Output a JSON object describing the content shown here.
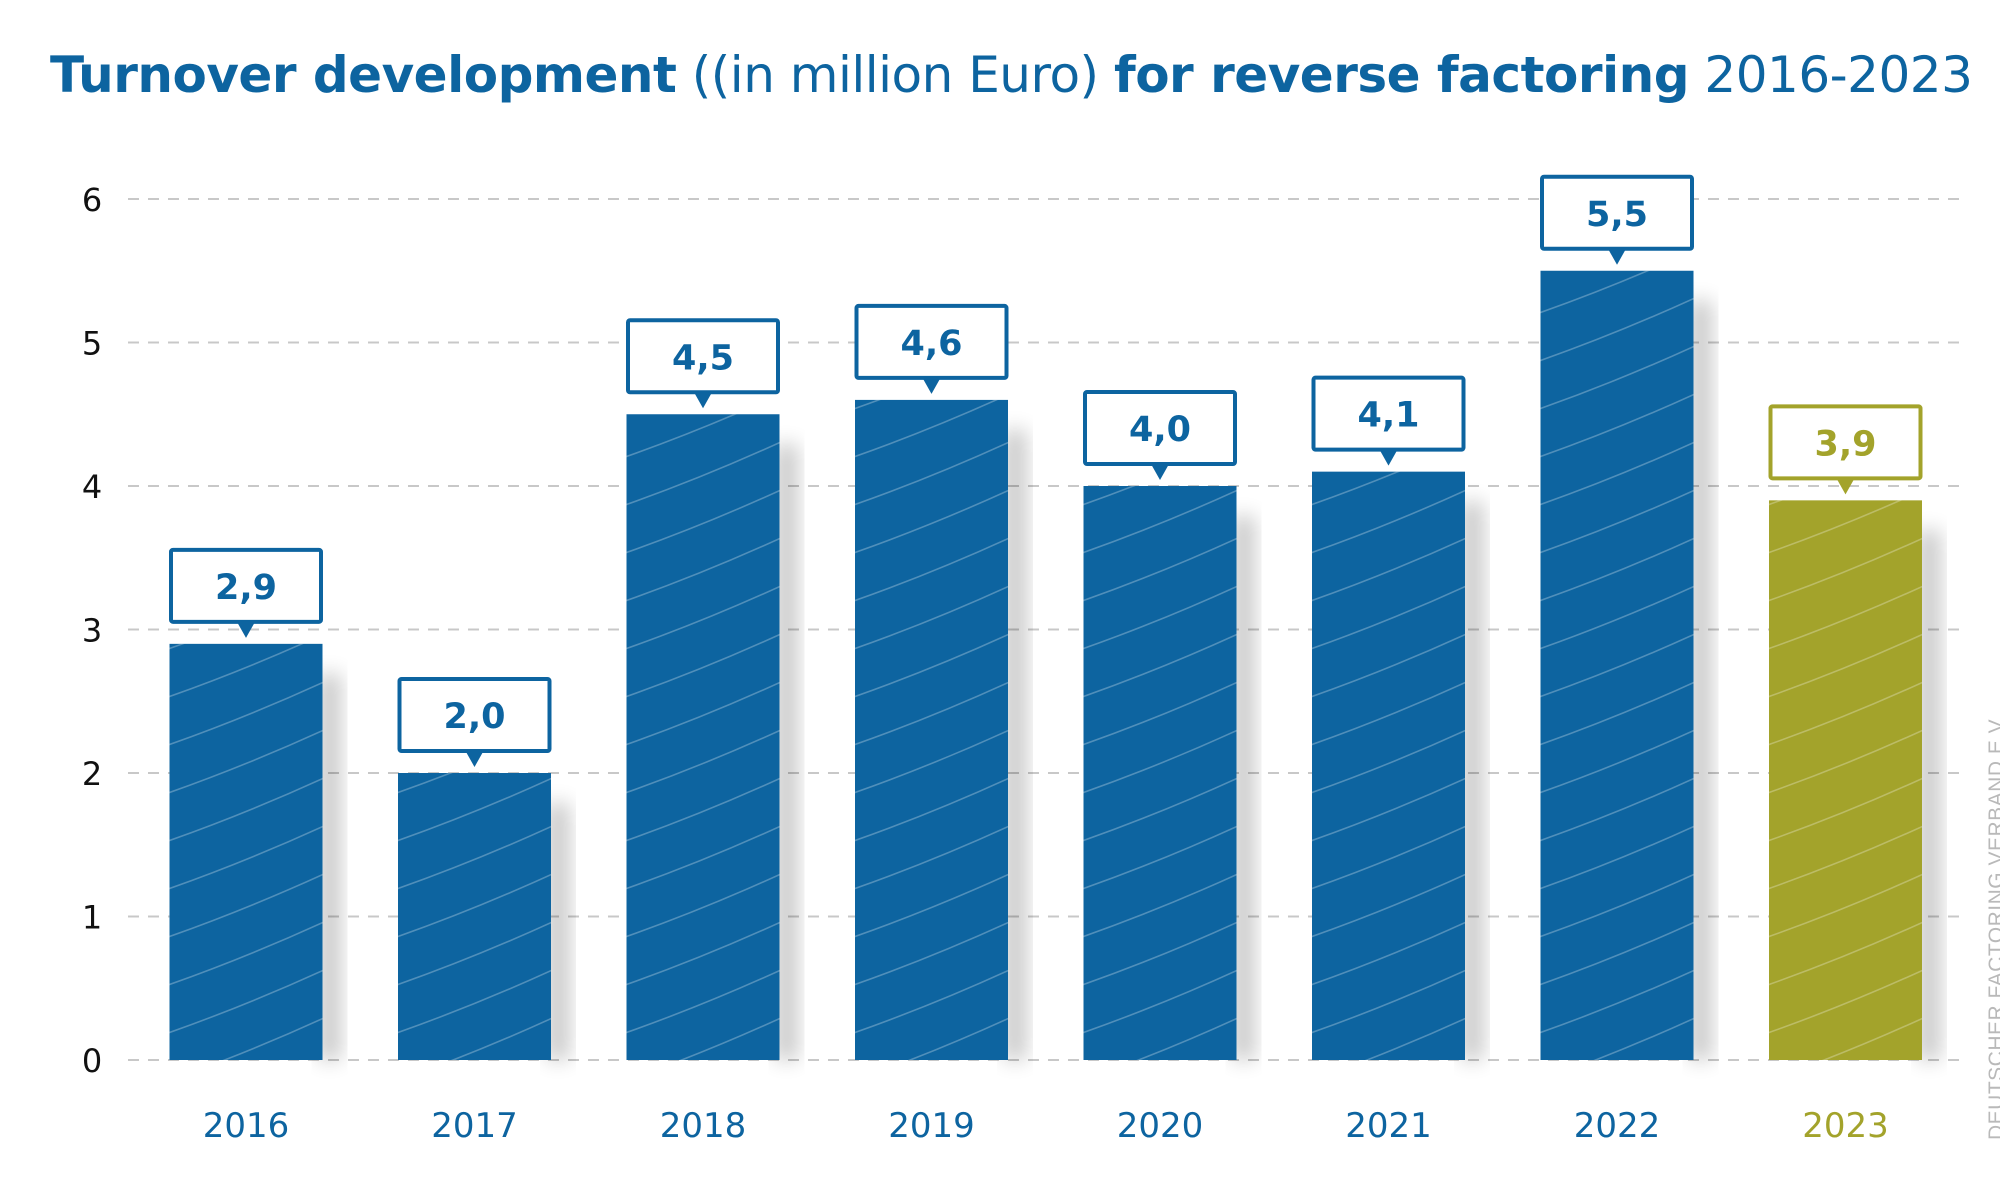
{
  "chart_data": {
    "type": "bar",
    "title_parts": [
      {
        "text": "Turnover development",
        "bold": true
      },
      {
        "text": " ((in million Euro) ",
        "bold": false
      },
      {
        "text": "for reverse factoring",
        "bold": true
      },
      {
        "text": " 2016-2023",
        "bold": false
      }
    ],
    "categories": [
      "2016",
      "2017",
      "2018",
      "2019",
      "2020",
      "2021",
      "2022",
      "2023"
    ],
    "values": [
      2.9,
      2.0,
      4.5,
      4.6,
      4.0,
      4.1,
      5.5,
      3.9
    ],
    "data_labels": [
      "2,9",
      "2,0",
      "4,5",
      "4,6",
      "4,0",
      "4,1",
      "5,5",
      "3,9"
    ],
    "ylim": [
      0,
      6
    ],
    "yticks": [
      0,
      1,
      2,
      3,
      4,
      5,
      6
    ],
    "grid": true,
    "colors": {
      "bar": "#0d64a0",
      "highlight": "#a3a32b",
      "title": "#0d64a0",
      "grid": "#c8c8c8"
    },
    "highlight_index": 7,
    "credit": "DEUTSCHER FACTORING VERBAND E.V."
  }
}
